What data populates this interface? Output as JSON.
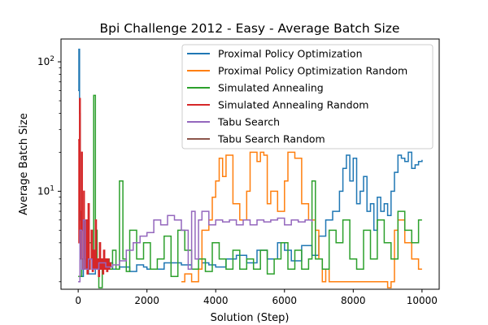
{
  "chart_data": {
    "type": "line",
    "title": "Bpi Challenge 2012 - Easy - Average Batch Size",
    "xlabel": "Solution (Step)",
    "ylabel": "Average Batch Size",
    "xscale": "linear",
    "yscale": "log",
    "xlim": [
      -500,
      10500
    ],
    "ylim": [
      1.75,
      150
    ],
    "xticks": [
      0,
      2000,
      4000,
      6000,
      8000,
      10000
    ],
    "yticks": [
      10,
      100
    ],
    "ytick_labels": [
      "10^1",
      "10^2"
    ],
    "grid": false,
    "legend_position": "top-right",
    "series": [
      {
        "name": "Proximal Policy Optimization",
        "color": "#1f77b4",
        "x": [
          0,
          20,
          40,
          60,
          80,
          100,
          150,
          200,
          300,
          500,
          800,
          1000,
          1200,
          1500,
          1700,
          1900,
          2000,
          2500,
          3000,
          3300,
          3600,
          3800,
          4000,
          4300,
          4600,
          4900,
          5200,
          5500,
          5800,
          6000,
          6200,
          6500,
          6800,
          7000,
          7200,
          7400,
          7600,
          7700,
          7800,
          7900,
          8000,
          8100,
          8200,
          8300,
          8400,
          8500,
          8600,
          8700,
          8800,
          8900,
          9000,
          9100,
          9200,
          9300,
          9400,
          9500,
          9600,
          9700,
          9800,
          9900,
          10000
        ],
        "y": [
          60,
          125,
          40,
          6,
          3,
          2.2,
          3,
          2.5,
          2.3,
          2.5,
          2.8,
          2.5,
          2.6,
          2.4,
          2.7,
          2.6,
          2.5,
          2.8,
          2.7,
          2.5,
          2.8,
          2.7,
          2.6,
          3,
          3.2,
          2.8,
          3.5,
          3,
          4,
          3.5,
          2.9,
          3.8,
          3.2,
          4.5,
          6,
          7,
          10,
          15,
          19,
          12,
          18,
          8,
          10,
          13,
          7,
          8,
          5,
          9,
          7,
          8,
          6.5,
          10,
          14,
          19,
          18,
          17,
          20,
          15,
          16,
          17,
          17.5
        ]
      },
      {
        "name": "Proximal Policy Optimization Random",
        "color": "#ff7f0e",
        "x": [
          3000,
          3100,
          3300,
          3500,
          3600,
          3800,
          3900,
          4000,
          4100,
          4200,
          4300,
          4500,
          4700,
          4900,
          5000,
          5200,
          5300,
          5400,
          5500,
          5600,
          5800,
          6000,
          6100,
          6300,
          6500,
          6700,
          6900,
          7000,
          7100,
          7200,
          7300,
          7500,
          7700,
          7900,
          8100,
          8300,
          8500,
          8700,
          8900,
          9000,
          9100,
          9200,
          9300,
          9500,
          9700,
          9800,
          9900,
          10000
        ],
        "y": [
          2,
          2.3,
          2,
          2.5,
          5,
          6,
          9,
          12,
          18,
          13,
          19,
          8,
          6,
          10,
          20,
          17,
          20,
          19,
          8,
          10,
          7,
          12,
          20,
          18,
          8,
          6,
          5,
          3,
          2,
          2.5,
          2,
          2,
          2,
          2,
          2,
          2,
          2,
          2,
          2,
          1.8,
          2,
          5,
          6,
          4,
          3,
          3,
          2.5,
          2.5
        ]
      },
      {
        "name": "Simulated Annealing",
        "color": "#2ca02c",
        "x": [
          0,
          100,
          200,
          300,
          400,
          450,
          500,
          550,
          600,
          700,
          800,
          900,
          1000,
          1100,
          1200,
          1300,
          1400,
          1500,
          1700,
          1900,
          2100,
          2300,
          2500,
          2700,
          2900,
          3100,
          3300,
          3500,
          3700,
          3900,
          4100,
          4300,
          4500,
          4700,
          4900,
          5100,
          5300,
          5500,
          5700,
          5900,
          6100,
          6300,
          6500,
          6700,
          6800,
          6900,
          7100,
          7300,
          7500,
          7700,
          7900,
          8100,
          8300,
          8500,
          8700,
          8900,
          9100,
          9300,
          9500,
          9700,
          9900,
          10000
        ],
        "y": [
          2.2,
          3,
          2.5,
          4,
          3.5,
          55,
          5,
          3,
          1.8,
          2.5,
          3,
          2.5,
          3.5,
          2.5,
          12,
          3,
          2.4,
          5,
          3,
          4,
          2.5,
          3,
          4.5,
          2.2,
          5,
          3.5,
          2.5,
          3,
          2.4,
          4,
          3,
          2.5,
          3.5,
          2.5,
          3,
          2.5,
          3.5,
          2.3,
          3,
          4,
          2.5,
          3.5,
          2.5,
          3,
          12,
          3,
          2.5,
          5,
          4,
          6,
          3,
          2.5,
          5,
          3,
          6,
          4,
          3,
          7,
          5,
          4,
          6,
          6
        ]
      },
      {
        "name": "Simulated Annealing Random",
        "color": "#d62728",
        "x": [
          0,
          20,
          40,
          60,
          80,
          100,
          120,
          140,
          160,
          180,
          200,
          230,
          260,
          290,
          320,
          350,
          380,
          410,
          440,
          470,
          500,
          530,
          560,
          590,
          620,
          650,
          680,
          710,
          740,
          770,
          800,
          830,
          860,
          890,
          920,
          950
        ],
        "y": [
          25,
          4,
          52,
          7,
          3,
          20,
          5,
          2.5,
          10,
          3,
          2.5,
          6,
          2.3,
          8,
          2.5,
          3,
          5,
          2.4,
          3.5,
          2.5,
          6,
          2.5,
          3,
          2.2,
          4,
          2.5,
          3,
          2.3,
          3.5,
          2.5,
          3,
          2.4,
          3,
          2.5,
          2.8,
          2.6
        ]
      },
      {
        "name": "Tabu Search",
        "color": "#9467bd",
        "x": [
          0,
          50,
          100,
          150,
          200,
          300,
          400,
          600,
          800,
          1000,
          1200,
          1400,
          1600,
          1800,
          2000,
          2200,
          2400,
          2600,
          2800,
          3000,
          3200,
          3300,
          3400,
          3500,
          3600,
          3800,
          4000,
          4200,
          4400,
          4600,
          4800,
          5000,
          5200,
          5400,
          5600,
          5800,
          6000,
          6200,
          6400,
          6600,
          6800
        ],
        "y": [
          2,
          5,
          2.5,
          6,
          2.5,
          3,
          2.5,
          2.8,
          2.6,
          2.7,
          2.9,
          3.5,
          4,
          4.5,
          4.8,
          6,
          5.5,
          6.5,
          6,
          5,
          2.5,
          7,
          3,
          6,
          7,
          5.5,
          6,
          5.8,
          6,
          5.5,
          6,
          5.5,
          6,
          5.8,
          6,
          6.2,
          5.5,
          6,
          5.8,
          6,
          5.8
        ]
      },
      {
        "name": "Tabu Search Random",
        "color": "#8c564b",
        "x": [],
        "y": []
      }
    ]
  }
}
